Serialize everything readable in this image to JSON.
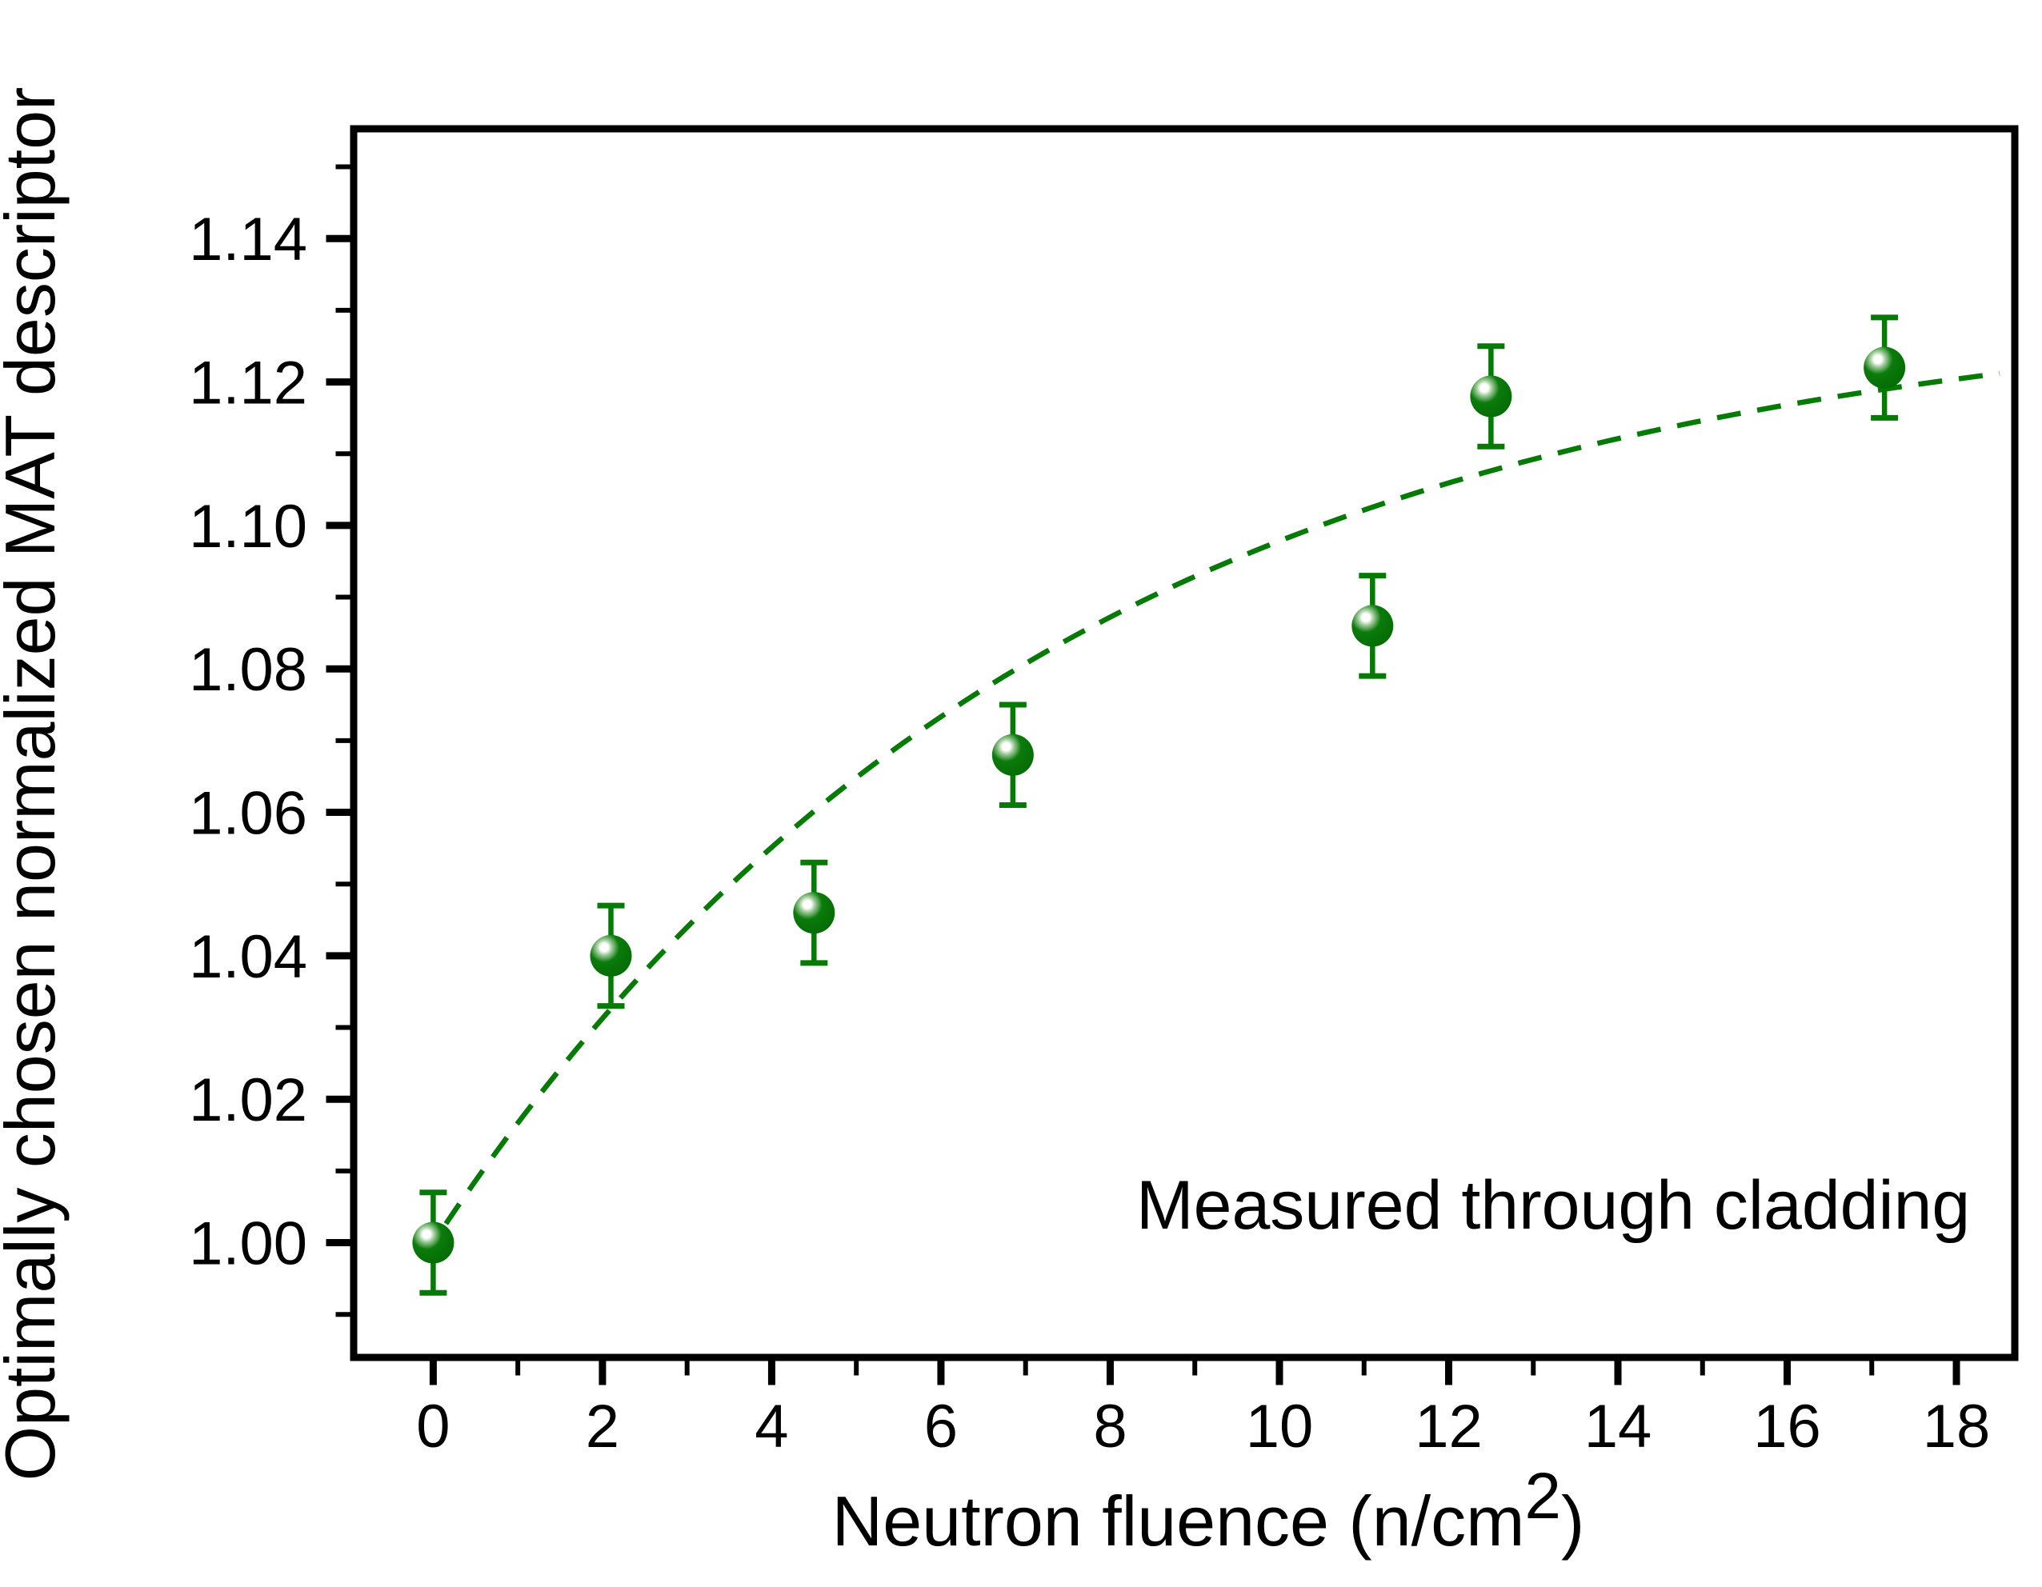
{
  "figure": {
    "background": "#ffffff",
    "annotation": "Measured through cladding",
    "x_axis_title_main": "Neutron fluence  (n/cm",
    "x_axis_title_sup": "2",
    "x_axis_title_close": ")",
    "y_axis_title": "Optimally chosen normalized MAT descriptor"
  },
  "chart_data": {
    "type": "scatter",
    "title": "",
    "xlabel": "Neutron fluence  (n/cm^2)",
    "ylabel": "Optimally chosen normalized MAT descriptor",
    "annotation": "Measured through cladding",
    "xlim": [
      -0.94,
      18.69
    ],
    "ylim": [
      0.984,
      1.1553
    ],
    "grid": false,
    "legend": "none",
    "x_ticks_major": [
      0,
      2,
      4,
      6,
      8,
      10,
      12,
      14,
      16,
      18
    ],
    "x_tick_labels": [
      "0",
      "2",
      "4",
      "6",
      "8",
      "10",
      "12",
      "14",
      "16",
      "18"
    ],
    "x_ticks_minor": [
      1,
      3,
      5,
      7,
      9,
      11,
      13,
      15,
      17
    ],
    "y_ticks_major": [
      1.0,
      1.02,
      1.04,
      1.06,
      1.08,
      1.1,
      1.12,
      1.14
    ],
    "y_tick_labels": [
      "1.00",
      "1.02",
      "1.04",
      "1.06",
      "1.08",
      "1.10",
      "1.12",
      "1.14"
    ],
    "y_ticks_minor": [
      0.99,
      1.01,
      1.03,
      1.05,
      1.07,
      1.09,
      1.11,
      1.13,
      1.15
    ],
    "series": [
      {
        "name": "measured-through-cladding",
        "marker": "sphere-ball",
        "points": [
          {
            "x": 0.0,
            "y": 1.0,
            "err": 0.007
          },
          {
            "x": 2.1,
            "y": 1.04,
            "err": 0.007
          },
          {
            "x": 4.5,
            "y": 1.046,
            "err": 0.007
          },
          {
            "x": 6.85,
            "y": 1.068,
            "err": 0.007
          },
          {
            "x": 11.1,
            "y": 1.086,
            "err": 0.007
          },
          {
            "x": 12.5,
            "y": 1.118,
            "err": 0.007
          },
          {
            "x": 17.15,
            "y": 1.122,
            "err": 0.007
          }
        ]
      }
    ],
    "fit_curve": {
      "style": "dashed",
      "model": "y = y0 + A*(1 - exp(-x/tau))",
      "y0": 1.0,
      "A": 0.132,
      "tau": 7.4,
      "x_start": 0.15,
      "x_end": 18.6
    },
    "colors": {
      "axis": "#000000",
      "text": "#000000",
      "line_green": "#057a05",
      "marker_body": "#0b7b0b",
      "marker_edge": "#026702",
      "marker_ring": "#9fcb9a",
      "marker_highlight": "#ffffff",
      "background": "#ffffff"
    }
  }
}
